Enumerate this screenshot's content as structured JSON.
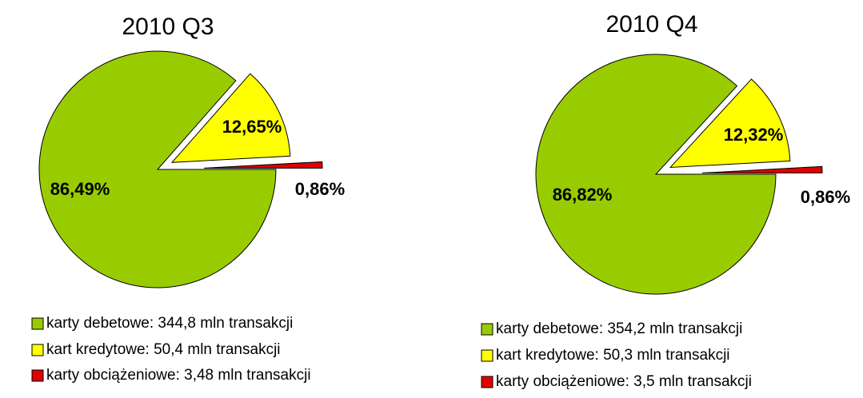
{
  "chart_data": [
    {
      "type": "pie",
      "title": "2010 Q3",
      "categories": [
        "karty debetowe: 344,8 mln transakcji",
        "kart kredytowe: 50,4 mln transakcji",
        "karty obciążeniowe: 3,48 mln transakcji"
      ],
      "values": [
        86.49,
        12.65,
        0.86
      ],
      "value_labels": [
        "86,49%",
        "12,65%",
        "0,86%"
      ],
      "colors": [
        "#99cc00",
        "#ffff00",
        "#e00000"
      ]
    },
    {
      "type": "pie",
      "title": "2010 Q4",
      "categories": [
        "karty debetowe: 354,2 mln transakcji",
        "kart kredytowe: 50,3 mln transakcji",
        "karty obciążeniowe: 3,5 mln transakcji"
      ],
      "values": [
        86.82,
        12.32,
        0.86
      ],
      "value_labels": [
        "86,82%",
        "12,32%",
        "0,86%"
      ],
      "colors": [
        "#99cc00",
        "#ffff00",
        "#e00000"
      ]
    }
  ]
}
